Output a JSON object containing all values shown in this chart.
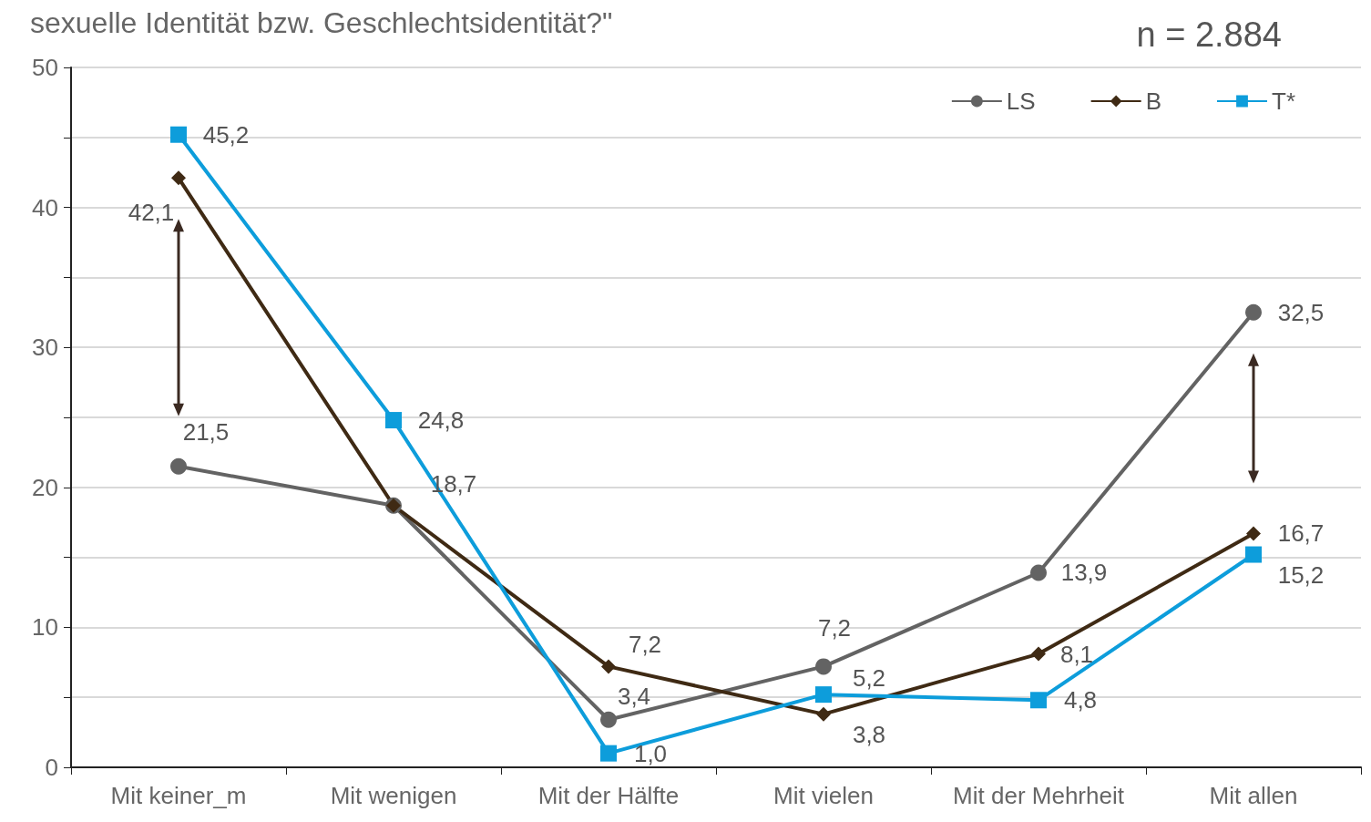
{
  "chart_data": {
    "type": "line",
    "title": "sexuelle Identität bzw. Geschlechtsidentität?\"",
    "annotations": [
      "n = 2.884"
    ],
    "categories": [
      "Mit keiner_m",
      "Mit wenigen",
      "Mit der Hälfte",
      "Mit vielen",
      "Mit der Mehrheit",
      "Mit allen"
    ],
    "series": [
      {
        "name": "LS",
        "color": "#636363",
        "marker": "circle",
        "values": [
          21.5,
          18.7,
          3.4,
          7.2,
          13.9,
          32.5
        ],
        "value_labels": [
          "21,5",
          "18,7",
          "3,4",
          "7,2",
          "13,9",
          "32,5"
        ]
      },
      {
        "name": "B",
        "color": "#3f2a14",
        "marker": "diamond",
        "values": [
          42.1,
          18.7,
          7.2,
          3.8,
          8.1,
          16.7
        ],
        "value_labels": [
          "42,1",
          null,
          "7,2",
          "3,8",
          "8,1",
          "16,7"
        ]
      },
      {
        "name": "T*",
        "color": "#0d9ddb",
        "marker": "square",
        "values": [
          45.2,
          24.8,
          1.0,
          5.2,
          4.8,
          15.2
        ],
        "value_labels": [
          "45,2",
          "24,8",
          "1,0",
          "5,2",
          "4,8",
          "15,2"
        ]
      }
    ],
    "ylim": [
      0,
      50
    ],
    "yticks": [
      0,
      {
        "value": 5,
        "label": null
      },
      10,
      {
        "value": 15,
        "label": null
      },
      20,
      {
        "value": 25,
        "label": null
      },
      30,
      {
        "value": 35,
        "label": null
      },
      40,
      {
        "value": 45,
        "label": null
      },
      50
    ],
    "grid": "y",
    "legend": "top right"
  }
}
